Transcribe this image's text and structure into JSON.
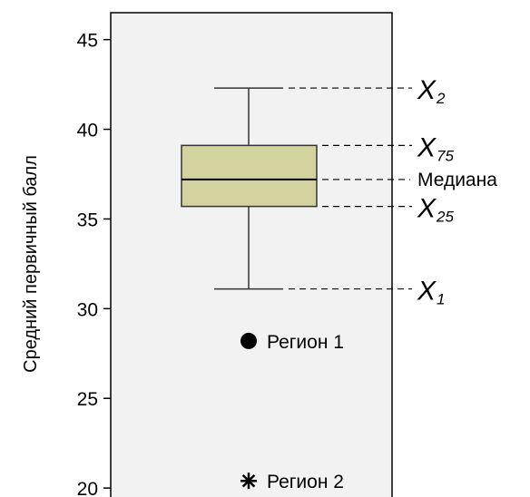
{
  "chart_data": {
    "type": "box",
    "ylabel": "Средний первичный балл",
    "ylim": [
      19.5,
      46.5
    ],
    "yticks": [
      20,
      25,
      30,
      35,
      40,
      45
    ],
    "box": {
      "whisker_low": 31.1,
      "q1": 35.7,
      "median": 37.2,
      "q3": 39.1,
      "whisker_high": 42.3,
      "fill": "#d3d3a0",
      "stroke": "#333333"
    },
    "annotations": [
      {
        "stat": "whisker_high",
        "symbol": "X",
        "sub": "2"
      },
      {
        "stat": "q3",
        "symbol": "X",
        "sub": "75"
      },
      {
        "stat": "median",
        "text": "Медиана"
      },
      {
        "stat": "q1",
        "symbol": "X",
        "sub": "25"
      },
      {
        "stat": "whisker_low",
        "symbol": "X",
        "sub": "1"
      }
    ],
    "points": [
      {
        "label": "Регион 1",
        "value": 28.2,
        "marker": "circle"
      },
      {
        "label": "Регион 2",
        "value": 20.4,
        "marker": "asterisk"
      }
    ],
    "plot_background": "#f2f2f2"
  }
}
